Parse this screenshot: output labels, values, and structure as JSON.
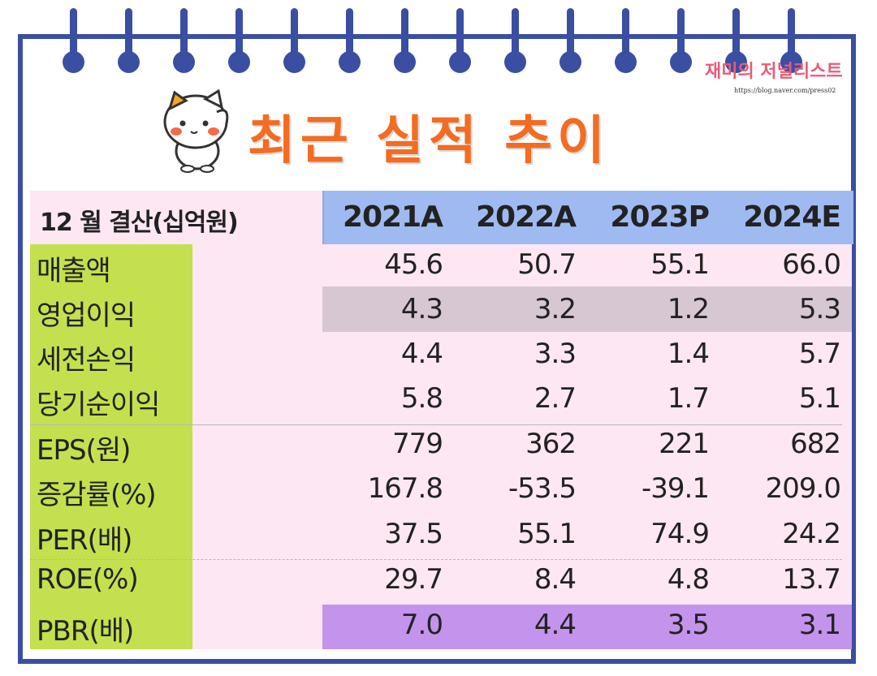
{
  "title": "최근 실적 추이",
  "logo": {
    "text": "재미의 저널리스트",
    "url": "https://blog.naver.com/press02"
  },
  "table": {
    "header_label": "12 월 결산(십억원)",
    "years": [
      "2021A",
      "2022A",
      "2023P",
      "2024E"
    ],
    "rows": [
      {
        "label": "매출액",
        "values": [
          "45.6",
          "50.7",
          "55.1",
          "66.0"
        ]
      },
      {
        "label": "영업이익",
        "values": [
          "4.3",
          "3.2",
          "1.2",
          "5.3"
        ]
      },
      {
        "label": "세전손익",
        "values": [
          "4.4",
          "3.3",
          "1.4",
          "5.7"
        ]
      },
      {
        "label": "당기순이익",
        "values": [
          "5.8",
          "2.7",
          "1.7",
          "5.1"
        ]
      },
      {
        "label": "EPS(원)",
        "values": [
          "779",
          "362",
          "221",
          "682"
        ]
      },
      {
        "label": "증감률(%)",
        "values": [
          "167.8",
          "-53.5",
          "-39.1",
          "209.0"
        ]
      },
      {
        "label": "PER(배)",
        "values": [
          "37.5",
          "55.1",
          "74.9",
          "24.2"
        ]
      },
      {
        "label": "ROE(%)",
        "values": [
          "29.7",
          "8.4",
          "4.8",
          "13.7"
        ]
      },
      {
        "label": "PBR(배)",
        "values": [
          "7.0",
          "4.4",
          "3.5",
          "3.1"
        ]
      }
    ]
  },
  "colors": {
    "frame": "#3a4ea2",
    "title": "#f26c22",
    "header_years_bg": "#9fbaf1",
    "label_col_bg": "#c4e04f",
    "table_bg": "#fde7f2",
    "highlight_operating": "#d7c7d2",
    "highlight_pbr": "#c493ec"
  }
}
